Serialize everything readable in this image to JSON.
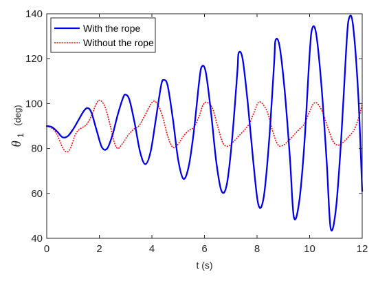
{
  "chart_data": {
    "type": "line",
    "xlabel": "t  (s)",
    "ylabel": {
      "symbol": "θ",
      "subscript": "1",
      "unit": "(deg)"
    },
    "xlim": [
      0,
      12
    ],
    "ylim": [
      40,
      140
    ],
    "xticks": [
      "0",
      "2",
      "4",
      "6",
      "8",
      "10",
      "12"
    ],
    "yticks": [
      "40",
      "60",
      "80",
      "100",
      "120",
      "140"
    ],
    "grid": false,
    "legend_position": "top-left",
    "series": [
      {
        "name": "With the rope",
        "color": "#0000ee",
        "style": "solid",
        "x": [
          0,
          0.2,
          0.4,
          0.6,
          0.8,
          1.0,
          1.2,
          1.4,
          1.55,
          1.7,
          1.9,
          2.1,
          2.3,
          2.5,
          2.7,
          2.9,
          3.0,
          3.15,
          3.35,
          3.55,
          3.75,
          3.95,
          4.15,
          4.35,
          4.45,
          4.6,
          4.8,
          5.0,
          5.2,
          5.4,
          5.6,
          5.8,
          5.9,
          6.05,
          6.25,
          6.45,
          6.65,
          6.85,
          7.05,
          7.25,
          7.3,
          7.45,
          7.65,
          7.85,
          8.05,
          8.25,
          8.45,
          8.65,
          8.7,
          8.85,
          9.05,
          9.25,
          9.4,
          9.6,
          9.8,
          10.0,
          10.1,
          10.25,
          10.45,
          10.65,
          10.8,
          11.0,
          11.2,
          11.4,
          11.5,
          11.65,
          11.85,
          12.0
        ],
        "y": [
          90,
          89.5,
          87.5,
          85,
          85.5,
          88.5,
          92.5,
          96.5,
          98,
          96,
          88,
          80.5,
          80,
          86,
          95,
          102.5,
          104,
          101.5,
          91,
          78.5,
          73,
          78.5,
          93,
          108,
          110.5,
          108,
          93,
          75,
          66.5,
          72,
          88,
          110,
          116.5,
          114,
          96,
          74,
          61,
          64,
          84,
          114,
          122.5,
          120,
          100,
          75,
          55,
          58,
          82,
          118,
          128,
          126,
          106,
          76,
          49.5,
          56,
          82,
          122,
          133.5,
          131,
          108,
          74,
          44.5,
          53,
          84,
          126,
          138,
          135,
          104,
          61
        ]
      },
      {
        "name": "Without the rope",
        "color": "#ff0000",
        "style": "dotted",
        "x": [
          0,
          0.2,
          0.4,
          0.6,
          0.75,
          0.9,
          1.1,
          1.3,
          1.5,
          1.7,
          1.85,
          2.0,
          2.2,
          2.4,
          2.55,
          2.7,
          2.9,
          3.1,
          3.3,
          3.5,
          3.7,
          3.9,
          4.05,
          4.2,
          4.4,
          4.6,
          4.8,
          5.0,
          5.2,
          5.4,
          5.6,
          5.8,
          5.95,
          6.1,
          6.3,
          6.5,
          6.7,
          6.9,
          7.1,
          7.3,
          7.5,
          7.7,
          7.9,
          8.05,
          8.2,
          8.4,
          8.6,
          8.8,
          9.0,
          9.2,
          9.4,
          9.6,
          9.8,
          10.0,
          10.15,
          10.3,
          10.5,
          10.7,
          10.9,
          11.1,
          11.3,
          11.5,
          11.7,
          11.9,
          12.0
        ],
        "y": [
          90,
          89,
          86,
          80.5,
          78.5,
          80,
          86.5,
          89,
          90.5,
          94.5,
          99,
          101.5,
          99,
          91,
          83.5,
          80,
          82.5,
          86,
          88.5,
          90,
          94,
          98.5,
          101,
          100,
          94.5,
          85.5,
          80.5,
          82,
          85.5,
          88,
          89.5,
          94.5,
          99.5,
          100.5,
          98,
          90,
          82.5,
          81,
          83,
          85.5,
          88,
          91,
          96.5,
          100.5,
          100,
          96,
          87.5,
          81.5,
          81.5,
          83.5,
          86,
          88.5,
          91,
          96.5,
          100,
          100,
          96,
          89,
          83,
          81.5,
          83,
          85.5,
          88.5,
          95,
          100
        ]
      }
    ]
  }
}
